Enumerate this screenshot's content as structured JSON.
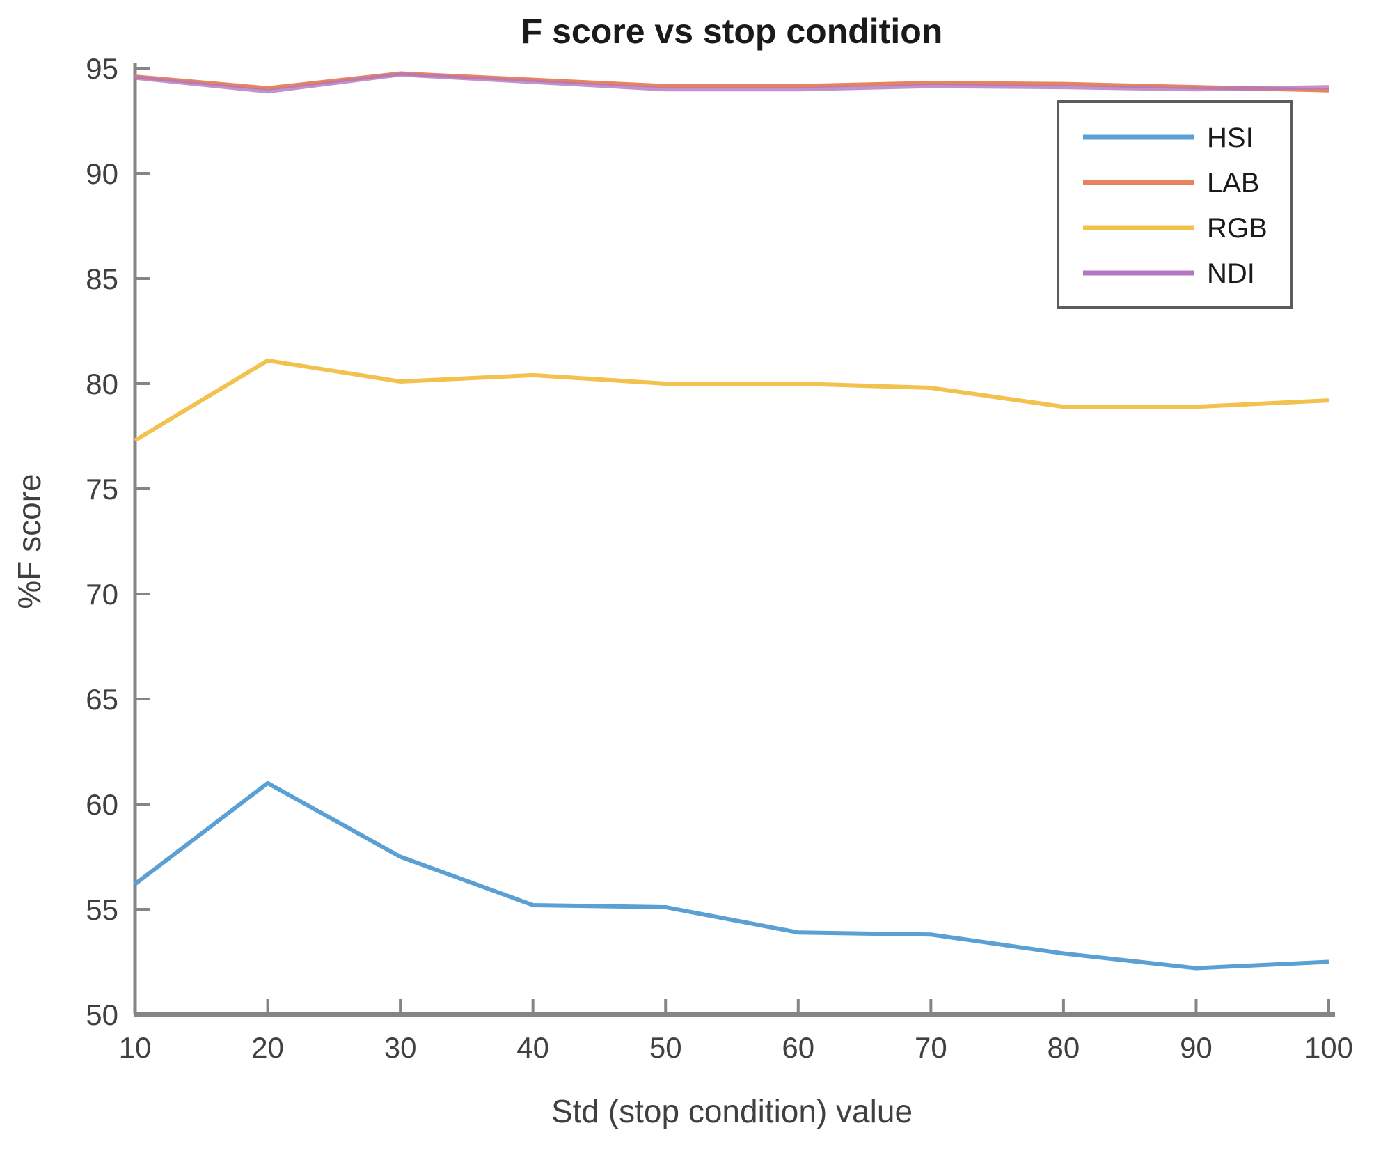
{
  "chart_data": {
    "type": "line",
    "title": "F score vs stop condition",
    "xlabel": "Std (stop condition) value",
    "ylabel": "%F score",
    "x": [
      10,
      20,
      30,
      40,
      50,
      60,
      70,
      80,
      90,
      100
    ],
    "x_ticks": [
      10,
      20,
      30,
      40,
      50,
      60,
      70,
      80,
      90,
      100
    ],
    "y_ticks": [
      50,
      55,
      60,
      65,
      70,
      75,
      80,
      85,
      90,
      95
    ],
    "xlim": [
      10,
      100
    ],
    "ylim": [
      50,
      95
    ],
    "grid": false,
    "legend_position": "top-right",
    "series": [
      {
        "name": "HSI",
        "color": "#5ba0d4",
        "values": [
          56.2,
          61.0,
          57.5,
          55.2,
          55.1,
          53.9,
          53.8,
          52.9,
          52.2,
          52.5
        ]
      },
      {
        "name": "LAB",
        "color": "#e8835f",
        "values": [
          94.6,
          94.05,
          94.75,
          94.45,
          94.15,
          94.15,
          94.3,
          94.25,
          94.1,
          93.95
        ]
      },
      {
        "name": "RGB",
        "color": "#f2c14e",
        "values": [
          77.3,
          81.1,
          80.1,
          80.4,
          80.0,
          80.0,
          79.8,
          78.9,
          78.9,
          79.2
        ]
      },
      {
        "name": "NDI",
        "color": "#b277bf",
        "values": [
          94.55,
          93.9,
          94.7,
          94.35,
          94.0,
          94.0,
          94.15,
          94.1,
          94.0,
          94.1
        ]
      }
    ],
    "legend_entries": [
      "HSI",
      "LAB",
      "RGB",
      "NDI"
    ],
    "colors": {
      "axis": "#858585",
      "tick_text": "#404040",
      "title_text": "#1a1a1a",
      "legend_border": "#5c5c5c",
      "background": "#ffffff"
    }
  }
}
